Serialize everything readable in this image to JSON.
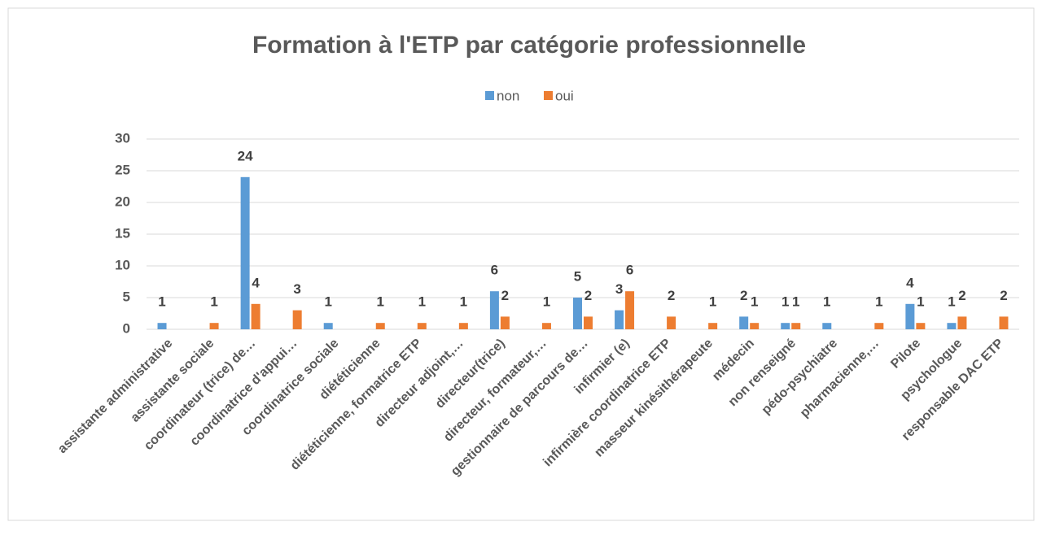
{
  "chart_data": {
    "type": "bar",
    "title": "Formation à l'ETP par catégorie professionnelle",
    "categories": [
      "assistante administrative",
      "assistante sociale",
      "coordinateur (trice) de…",
      "coordinatrice d'appui…",
      "coordinatrice sociale",
      "diététicienne",
      "diététicienne, formatrice ETP",
      "directeur adjoint,…",
      "directeur(trice)",
      "directeur, formateur,…",
      "gestionnaire de parcours de…",
      "infirmier (e)",
      "infirmière coordinatrice ETP",
      "masseur kinésithérapeute",
      "médecin",
      "non renseigné",
      "pédo-psychiatre",
      "pharmacienne,…",
      "Pilote",
      "psychologue",
      "responsable DAC ETP"
    ],
    "series": [
      {
        "name": "non",
        "color": "#5b9bd5",
        "values": [
          1,
          null,
          24,
          null,
          1,
          null,
          null,
          null,
          6,
          null,
          5,
          3,
          null,
          null,
          2,
          1,
          1,
          null,
          4,
          1,
          null
        ]
      },
      {
        "name": "oui",
        "color": "#ed7d31",
        "values": [
          null,
          1,
          4,
          3,
          null,
          1,
          1,
          1,
          2,
          1,
          2,
          6,
          2,
          1,
          1,
          1,
          null,
          1,
          1,
          2,
          2
        ]
      }
    ],
    "ylim": [
      0,
      30
    ],
    "yticks": [
      0,
      5,
      10,
      15,
      20,
      25,
      30
    ],
    "grid": true,
    "legend": "top"
  }
}
